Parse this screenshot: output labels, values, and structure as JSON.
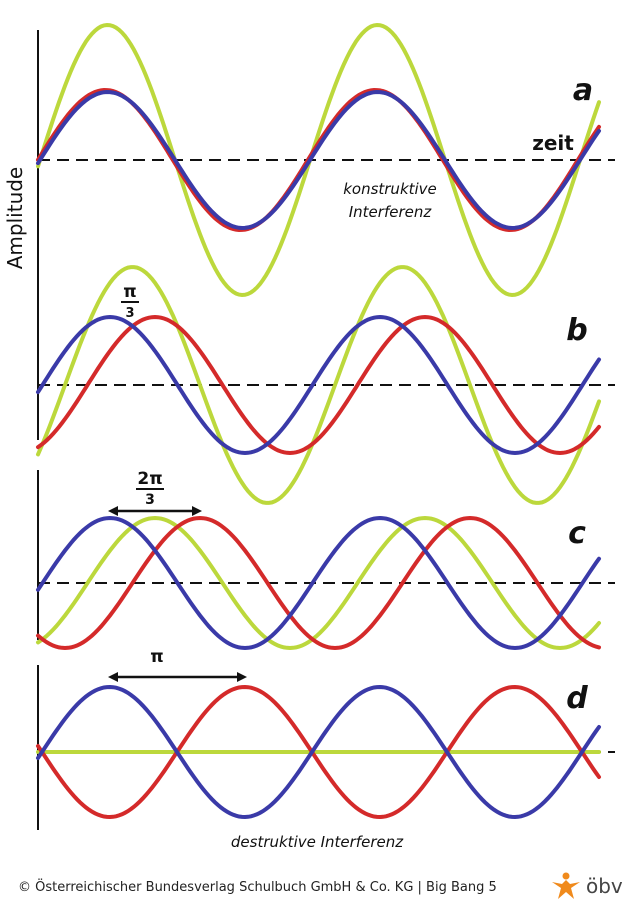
{
  "axis_label": "Amplitude",
  "time_label": "zeit",
  "panels": [
    {
      "letter": "a",
      "caption": [
        "konstruktive",
        "Interferenz"
      ]
    },
    {
      "letter": "b",
      "phase_label": {
        "numerator": "π",
        "denominator": "3"
      }
    },
    {
      "letter": "c",
      "phase_label": {
        "numerator": "2π",
        "denominator": "3"
      }
    },
    {
      "letter": "d",
      "phase_label": "π",
      "caption": "destruktive Interferenz"
    }
  ],
  "footer": {
    "copyright": "© Österreichischer Bundesverlag Schulbuch GmbH & Co. KG | Big Bang 5",
    "logo": "öbv"
  }
}
